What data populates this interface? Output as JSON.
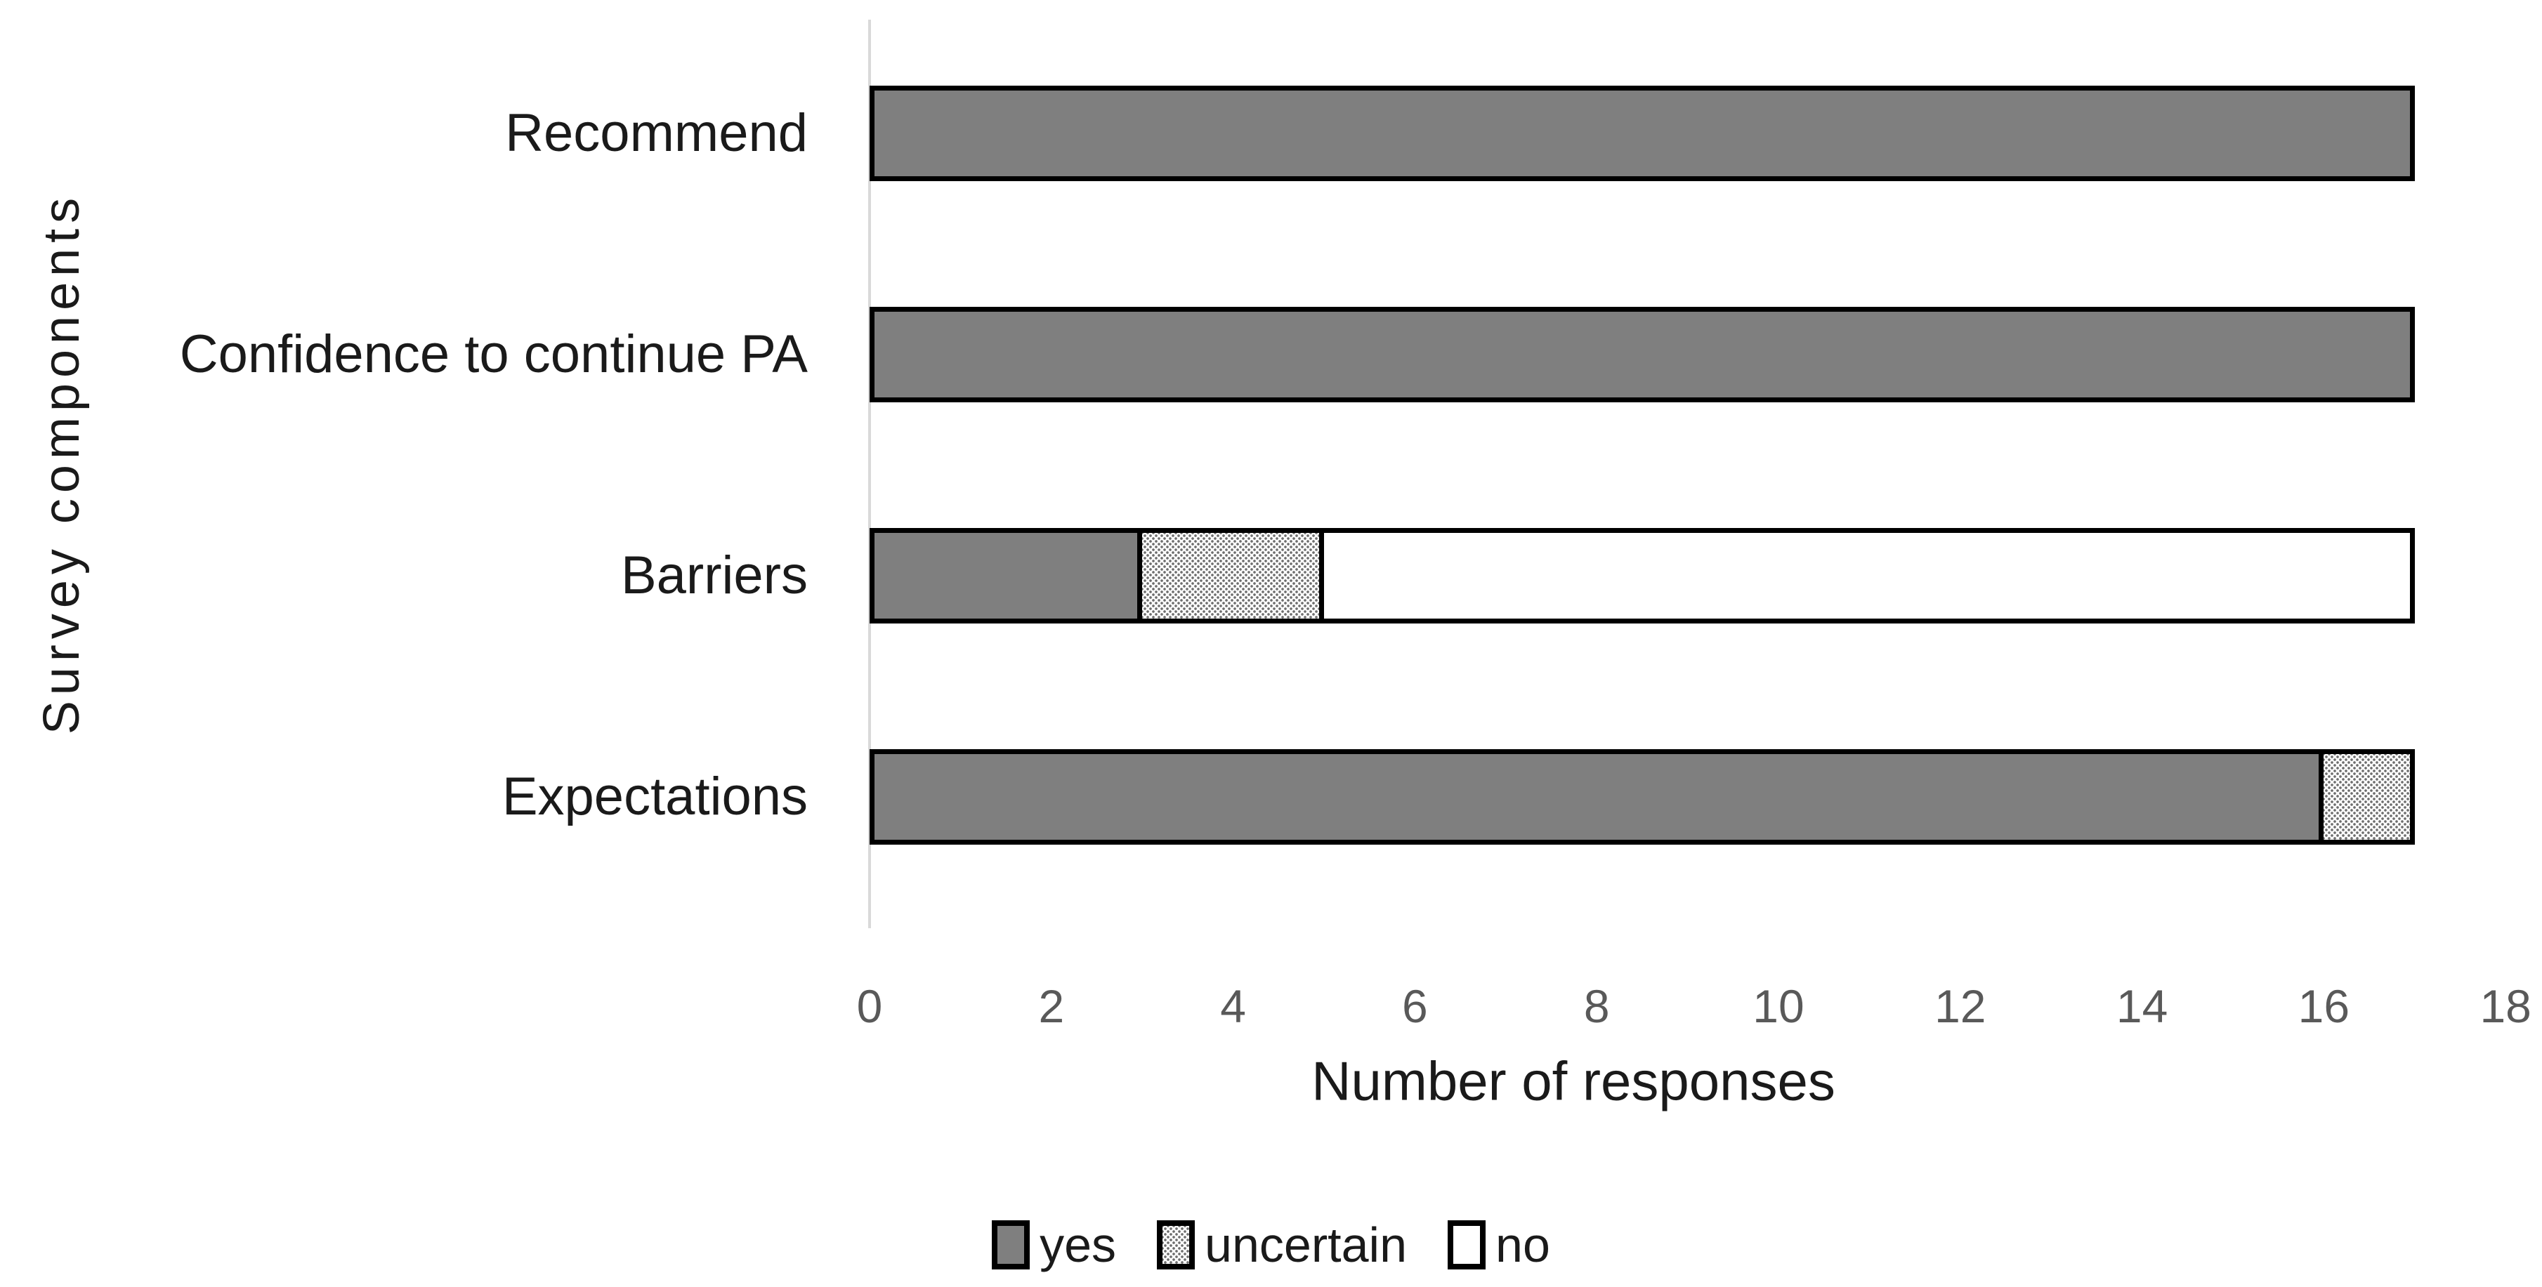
{
  "chart_data": {
    "type": "bar",
    "orientation": "horizontal",
    "stacked": true,
    "title": "",
    "xlabel": "Number of responses",
    "ylabel": "Survey components",
    "categories": [
      "Recommend",
      "Confidence to continue PA",
      "Barriers",
      "Expectations"
    ],
    "series": [
      {
        "name": "yes",
        "fill": "solid-gray",
        "color": "#7f7f7f",
        "values": [
          17,
          17,
          3,
          16
        ]
      },
      {
        "name": "uncertain",
        "fill": "dotted-pattern",
        "color": "#ffffff",
        "values": [
          0,
          0,
          2,
          1
        ]
      },
      {
        "name": "no",
        "fill": "solid-white",
        "color": "#ffffff",
        "values": [
          0,
          0,
          12,
          0
        ]
      }
    ],
    "xlim": [
      0,
      18
    ],
    "xticks": [
      0,
      2,
      4,
      6,
      8,
      10,
      12,
      14,
      16,
      18
    ],
    "grid": false,
    "legend_position": "bottom-center",
    "colors": {
      "bar_border": "#000000",
      "axis_line": "#d9d9d9",
      "tick_label": "#595959",
      "text": "#1a1a1a",
      "background": "#ffffff"
    }
  }
}
